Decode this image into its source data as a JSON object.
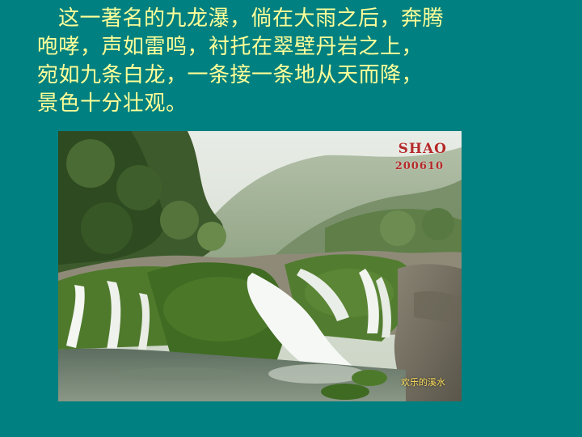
{
  "text": {
    "lines": [
      "这一著名的九龙瀑，倘在大雨之后，奔腾",
      "咆哮，声如雷鸣，衬托在翠壁丹岩之上，",
      "宛如九条白龙，一条接一条地从天而降，",
      "景色十分壮观。"
    ]
  },
  "photo": {
    "watermark_name": "SHAO",
    "watermark_code": "200610",
    "signature": "欢乐的溪水"
  },
  "colors": {
    "background": "#008080",
    "text": "#ffff99"
  }
}
